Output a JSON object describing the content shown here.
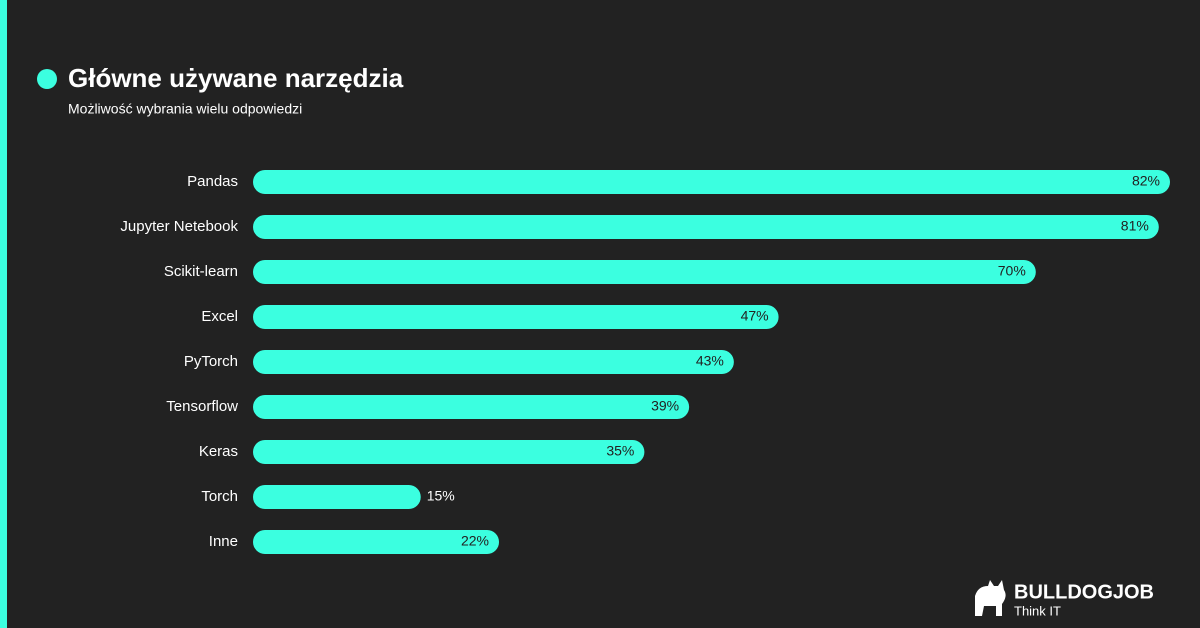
{
  "chart_data": {
    "type": "bar",
    "orientation": "horizontal",
    "title": "Główne używane narzędzia",
    "subtitle": "Możliwość wybrania wielu odpowiedzi",
    "categories": [
      "Pandas",
      "Jupyter Netebook",
      "Scikit-learn",
      "Excel",
      "PyTorch",
      "Tensorflow",
      "Keras",
      "Torch",
      "Inne"
    ],
    "values": [
      82,
      81,
      70,
      47,
      43,
      39,
      35,
      15,
      22
    ],
    "value_labels": [
      "82%",
      "81%",
      "70%",
      "47%",
      "43%",
      "39%",
      "35%",
      "15%",
      "22%"
    ],
    "color": "#3bffe0"
  },
  "brand": {
    "name": "BULLDOGJOB",
    "tagline": "Think IT"
  }
}
